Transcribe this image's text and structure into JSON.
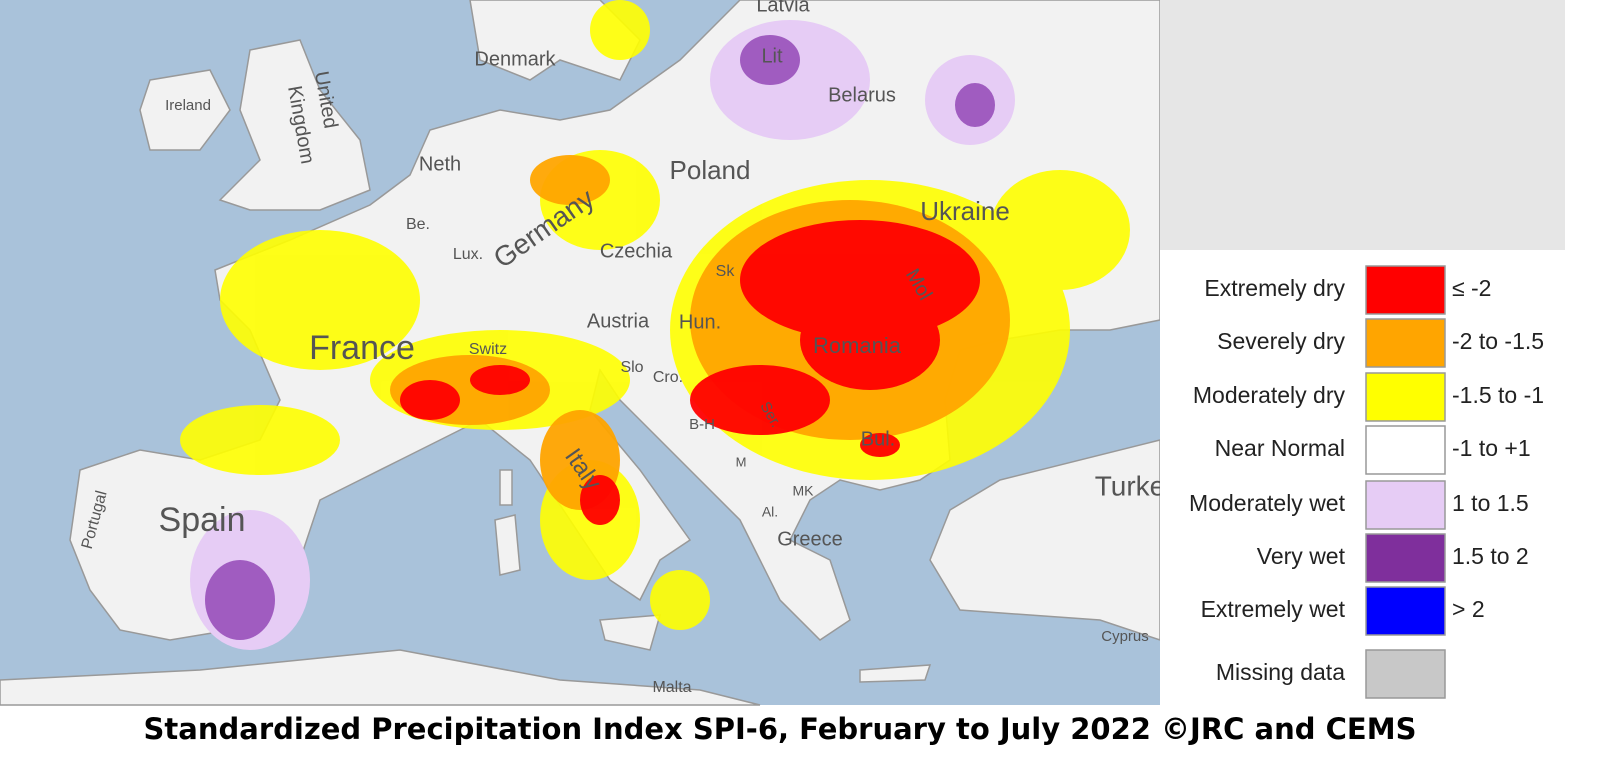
{
  "map": {
    "labels": [
      "Latvia",
      "Denmark",
      "Ireland",
      "United",
      "Kingdom",
      "Neth",
      "Be.",
      "Lux.",
      "Germany",
      "Poland",
      "Czechia",
      "Lit",
      "Belarus",
      "Ukraine",
      "Sk",
      "Hun.",
      "Austria",
      "Mol",
      "Romania",
      "France",
      "Switz",
      "Slo",
      "Cro.",
      "B-H",
      "Ser.",
      "Bul.",
      "M",
      "MK",
      "Al.",
      "Greece",
      "Italy",
      "Spain",
      "Portugal",
      "Turke",
      "Cyprus",
      "Malta"
    ]
  },
  "legend": {
    "items": [
      {
        "label": "Extremely dry",
        "range": "≤ -2",
        "color": "#ff0000"
      },
      {
        "label": "Severely dry",
        "range": "-2 to -1.5",
        "color": "#ffa500"
      },
      {
        "label": "Moderately dry",
        "range": "-1.5 to -1",
        "color": "#ffff00"
      },
      {
        "label": "Near Normal",
        "range": "-1 to +1",
        "color": "#ffffff"
      },
      {
        "label": "Moderately wet",
        "range": "1 to 1.5",
        "color": "#e6ccf5"
      },
      {
        "label": "Very wet",
        "range": "1.5 to 2",
        "color": "#7f2f9c"
      },
      {
        "label": "Extremely wet",
        "range": "> 2",
        "color": "#0000ff"
      },
      {
        "label": "Missing data",
        "color": "#c8c8c8"
      }
    ]
  },
  "caption": "Standardized Precipitation Index SPI-6, February to July 2022 ©JRC and CEMS"
}
